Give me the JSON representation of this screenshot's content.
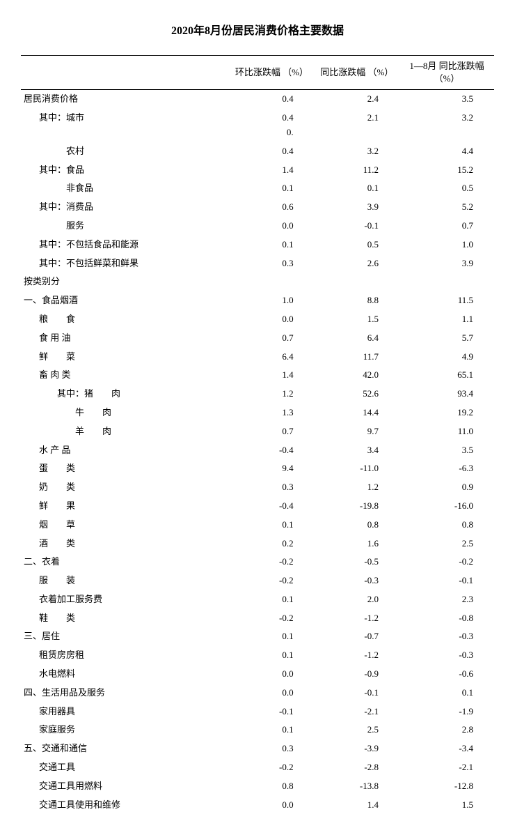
{
  "title": "2020年8月份居民消费价格主要数据",
  "columns": {
    "label": "",
    "c1": "环比涨跌幅\n（%）",
    "c2": "同比涨跌幅\n（%）",
    "c3": "1—8月\n同比涨跌幅（%）"
  },
  "rows": [
    {
      "label": "居民消费价格",
      "indent": 0,
      "c1": "0.4",
      "c2": "2.4",
      "c3": "3.5",
      "sep": true
    },
    {
      "label": "其中：城市",
      "indent": 1,
      "c1": "0.4\n0.",
      "c2": "2.1",
      "c3": "3.2"
    },
    {
      "label": "　　　农村",
      "indent": 1,
      "c1": "0.4",
      "c2": "3.2",
      "c3": "4.4"
    },
    {
      "label": "其中：食品",
      "indent": 1,
      "c1": "1.4",
      "c2": "11.2",
      "c3": "15.2"
    },
    {
      "label": "　　　非食品",
      "indent": 1,
      "c1": "0.1",
      "c2": "0.1",
      "c3": "0.5"
    },
    {
      "label": "其中：消费品",
      "indent": 1,
      "c1": "0.6",
      "c2": "3.9",
      "c3": "5.2"
    },
    {
      "label": "　　　服务",
      "indent": 1,
      "c1": "0.0",
      "c2": "-0.1",
      "c3": "0.7"
    },
    {
      "label": "其中：不包括食品和能源",
      "indent": 1,
      "c1": "0.1",
      "c2": "0.5",
      "c3": "1.0"
    },
    {
      "label": "其中：不包括鲜菜和鲜果",
      "indent": 1,
      "c1": "0.3",
      "c2": "2.6",
      "c3": "3.9"
    },
    {
      "label": "按类别分",
      "indent": 0,
      "c1": "",
      "c2": "",
      "c3": ""
    },
    {
      "label": "一、食品烟酒",
      "indent": 0,
      "c1": "1.0",
      "c2": "8.8",
      "c3": "11.5"
    },
    {
      "label": "粮　　食",
      "indent": 1,
      "c1": "0.0",
      "c2": "1.5",
      "c3": "1.1"
    },
    {
      "label": "食 用 油",
      "indent": 1,
      "c1": "0.7",
      "c2": "6.4",
      "c3": "5.7"
    },
    {
      "label": "鲜　　菜",
      "indent": 1,
      "c1": "6.4",
      "c2": "11.7",
      "c3": "4.9"
    },
    {
      "label": "畜 肉 类",
      "indent": 1,
      "c1": "1.4",
      "c2": "42.0",
      "c3": "65.1"
    },
    {
      "label": "其中：猪　　肉",
      "indent": 2,
      "c1": "1.2",
      "c2": "52.6",
      "c3": "93.4"
    },
    {
      "label": "牛　　肉",
      "indent": 3,
      "c1": "1.3",
      "c2": "14.4",
      "c3": "19.2"
    },
    {
      "label": "羊　　肉",
      "indent": 3,
      "c1": "0.7",
      "c2": "9.7",
      "c3": "11.0"
    },
    {
      "label": "水 产 品",
      "indent": 1,
      "c1": "-0.4",
      "c2": "3.4",
      "c3": "3.5"
    },
    {
      "label": "蛋　　类",
      "indent": 1,
      "c1": "9.4",
      "c2": "-11.0",
      "c3": "-6.3"
    },
    {
      "label": "奶　　类",
      "indent": 1,
      "c1": "0.3",
      "c2": "1.2",
      "c3": "0.9"
    },
    {
      "label": "鲜　　果",
      "indent": 1,
      "c1": "-0.4",
      "c2": "-19.8",
      "c3": "-16.0"
    },
    {
      "label": "烟　　草",
      "indent": 1,
      "c1": "0.1",
      "c2": "0.8",
      "c3": "0.8"
    },
    {
      "label": "酒　　类",
      "indent": 1,
      "c1": "0.2",
      "c2": "1.6",
      "c3": "2.5"
    },
    {
      "label": "二、衣着",
      "indent": 0,
      "c1": "-0.2",
      "c2": "-0.5",
      "c3": "-0.2"
    },
    {
      "label": "服　　装",
      "indent": 1,
      "c1": "-0.2",
      "c2": "-0.3",
      "c3": "-0.1"
    },
    {
      "label": "衣着加工服务费",
      "indent": 1,
      "c1": "0.1",
      "c2": "2.0",
      "c3": "2.3"
    },
    {
      "label": "鞋　　类",
      "indent": 1,
      "c1": "-0.2",
      "c2": "-1.2",
      "c3": "-0.8"
    },
    {
      "label": "三、居住",
      "indent": 0,
      "c1": "0.1",
      "c2": "-0.7",
      "c3": "-0.3"
    },
    {
      "label": "租赁房房租",
      "indent": 1,
      "c1": "0.1",
      "c2": "-1.2",
      "c3": "-0.3"
    },
    {
      "label": "水电燃料",
      "indent": 1,
      "c1": "0.0",
      "c2": "-0.9",
      "c3": "-0.6"
    },
    {
      "label": "四、生活用品及服务",
      "indent": 0,
      "c1": "0.0",
      "c2": "-0.1",
      "c3": "0.1"
    },
    {
      "label": "家用器具",
      "indent": 1,
      "c1": "-0.1",
      "c2": "-2.1",
      "c3": "-1.9"
    },
    {
      "label": "家庭服务",
      "indent": 1,
      "c1": "0.1",
      "c2": "2.5",
      "c3": "2.8"
    },
    {
      "label": "五、交通和通信",
      "indent": 0,
      "c1": "0.3",
      "c2": "-3.9",
      "c3": "-3.4"
    },
    {
      "label": "交通工具",
      "indent": 1,
      "c1": "-0.2",
      "c2": "-2.8",
      "c3": "-2.1"
    },
    {
      "label": "交通工具用燃料",
      "indent": 1,
      "c1": "0.8",
      "c2": "-13.8",
      "c3": "-12.8"
    },
    {
      "label": "交通工具使用和维修",
      "indent": 1,
      "c1": "0.0",
      "c2": "1.4",
      "c3": "1.5"
    }
  ]
}
